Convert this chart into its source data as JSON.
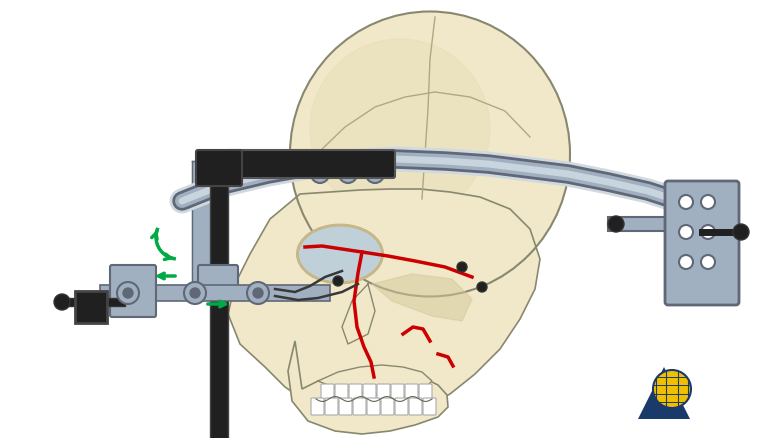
{
  "background_color": "#ffffff",
  "fig_width": 7.8,
  "fig_height": 4.39,
  "dpi": 100,
  "skull_color": "#f0e8c8",
  "skull_shadow": "#d4c89a",
  "skull_dark": "#c8b888",
  "device_gray": "#a0b0c0",
  "device_dark": "#606878",
  "device_black": "#202020",
  "red_line": "#cc0000",
  "green_arrow": "#00aa44",
  "logo_blue": "#1a3a6b",
  "logo_yellow": "#f0c000"
}
